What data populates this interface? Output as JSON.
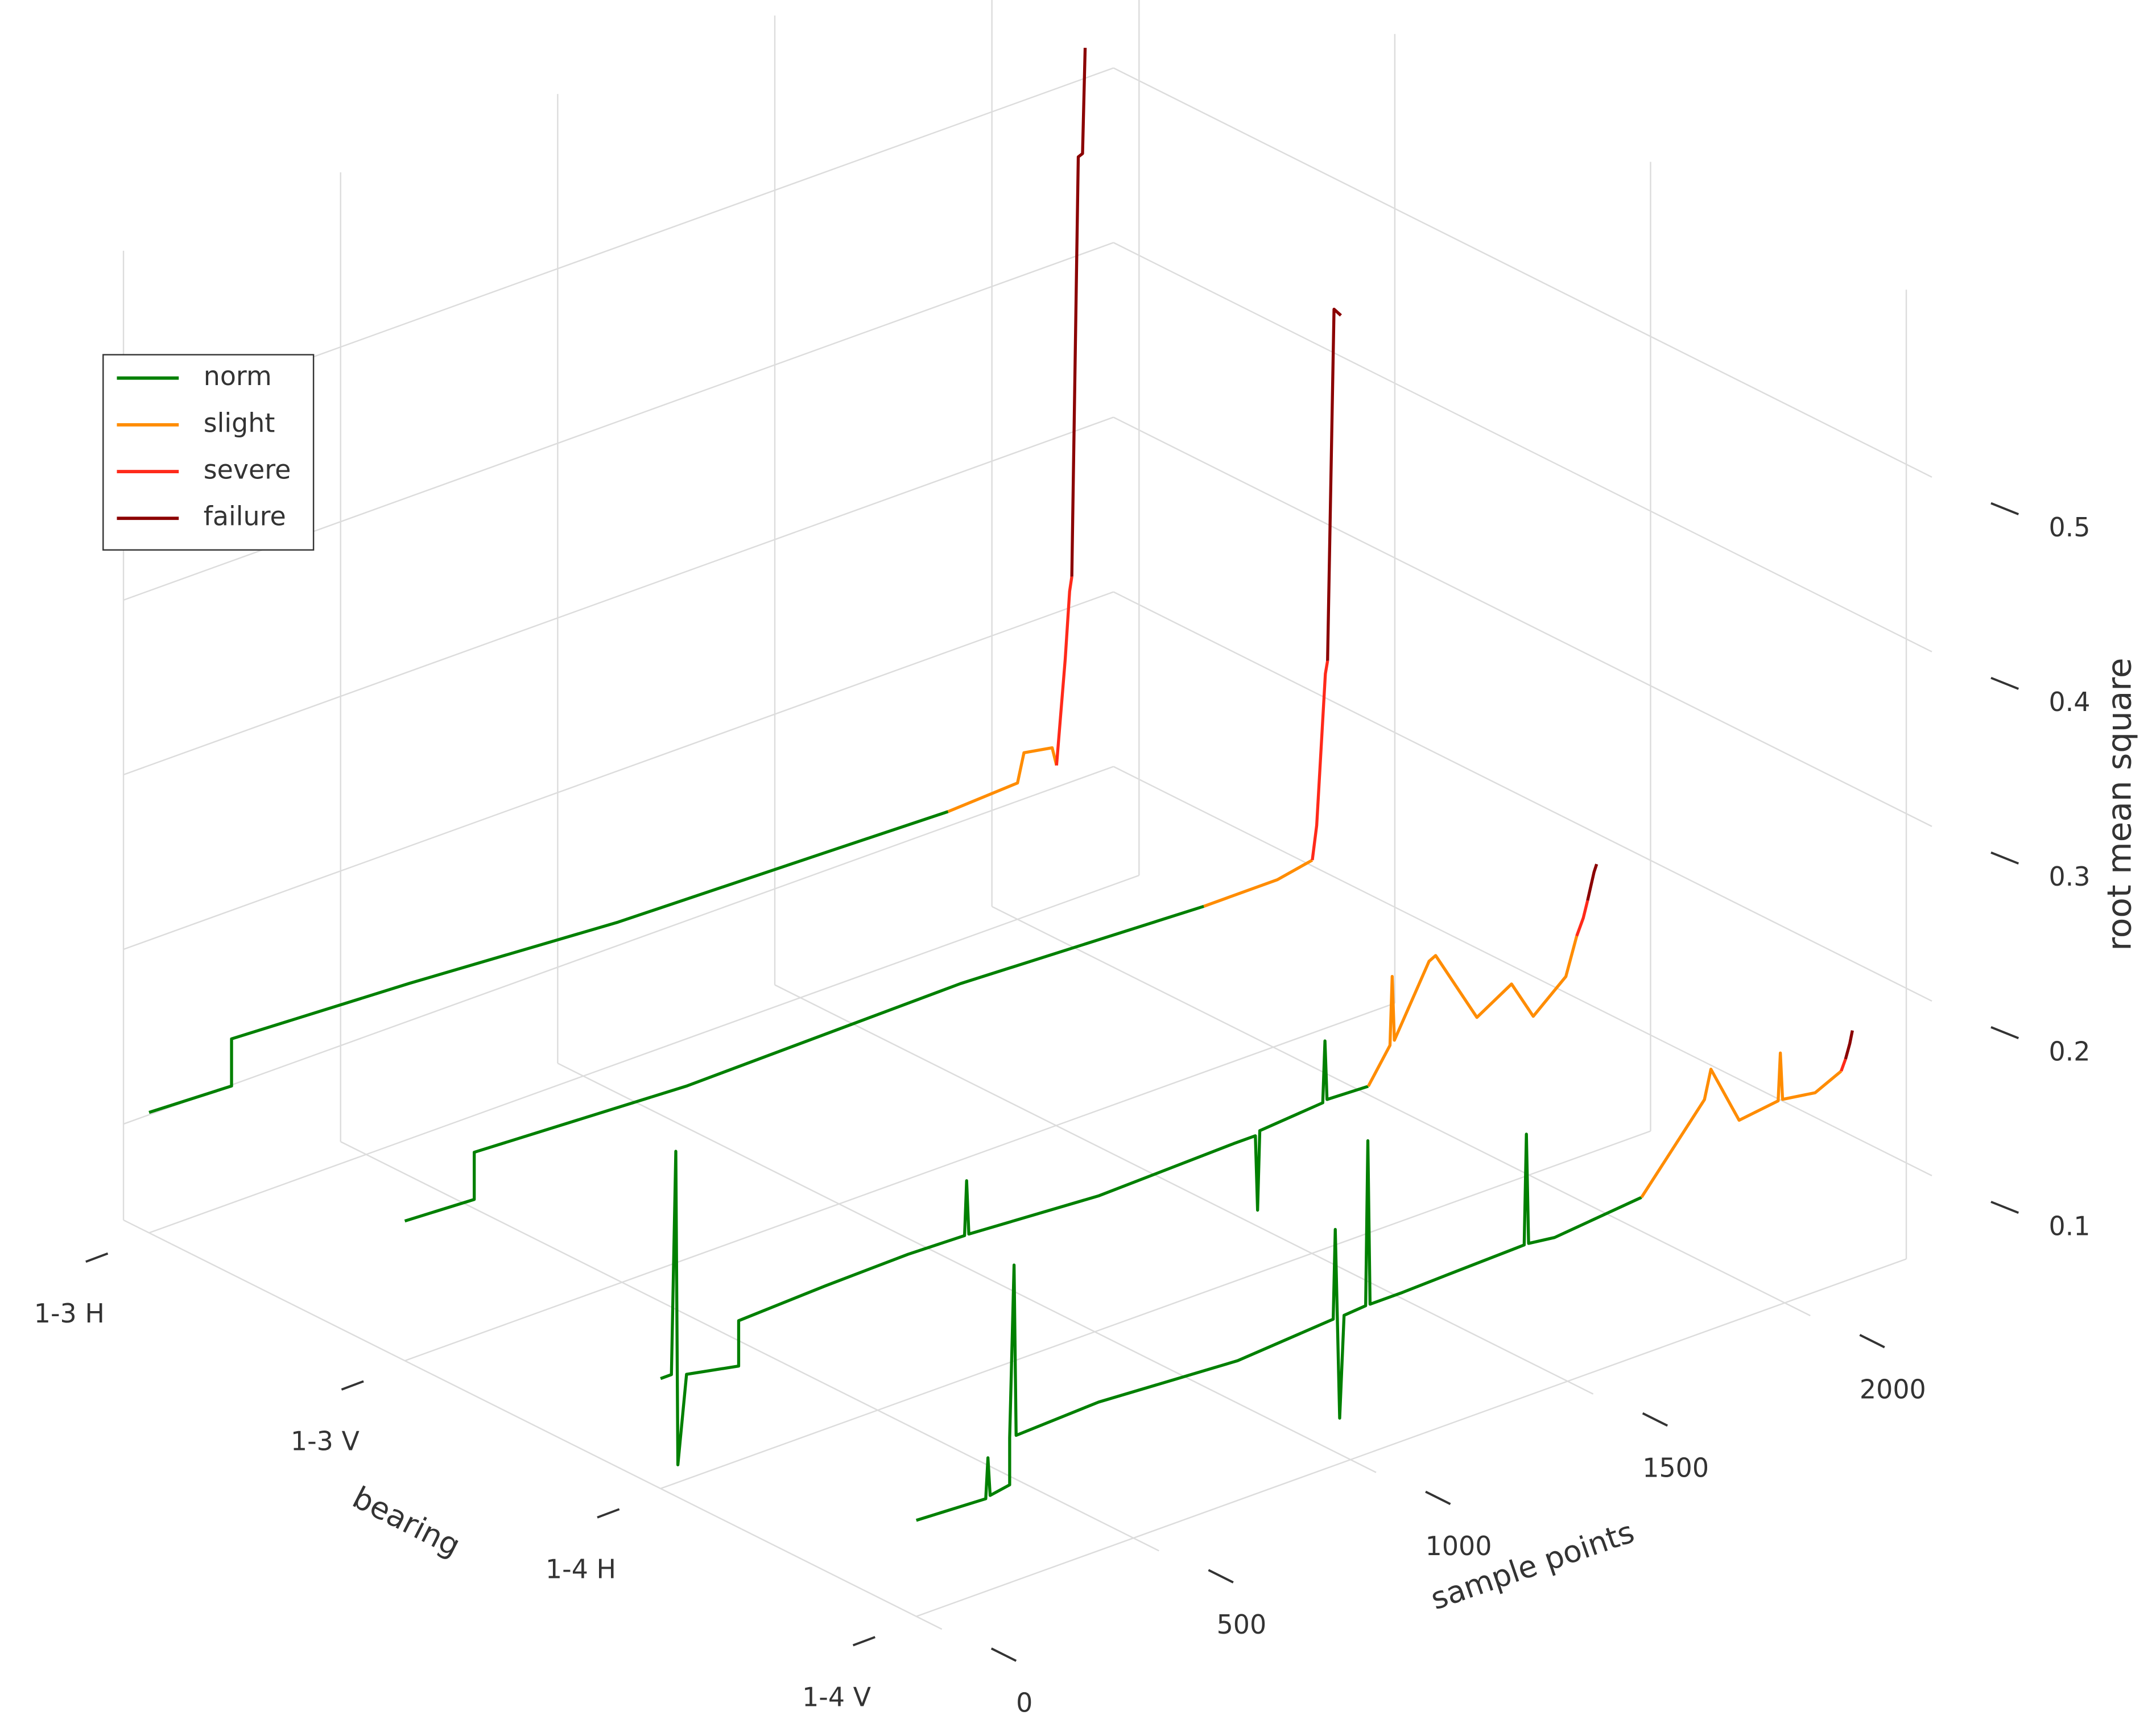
{
  "chart_data": {
    "type": "line3d",
    "xlabel": "sample points",
    "ylabel": "bearing",
    "zlabel": "root mean square",
    "categories": [
      "1-3 H",
      "1-3 V",
      "1-4 H",
      "1-4 V"
    ],
    "xlim": [
      0,
      2280
    ],
    "xticks": [
      0,
      500,
      1000,
      1500,
      2000
    ],
    "zlim": [
      0.045,
      0.6
    ],
    "zticks": [
      0.1,
      0.2,
      0.3,
      0.4,
      0.5
    ],
    "grid": true,
    "legend": "upper left",
    "series": [
      {
        "name": "norm",
        "color": "#008000",
        "x": [
          [
            0,
            190,
            190,
            600,
            1080,
            1550,
            1840
          ],
          [
            0,
            160,
            160,
            650,
            1280,
            1840
          ],
          [
            0,
            25,
            35,
            40,
            60,
            180,
            180,
            380,
            570,
            700,
            705,
            710,
            1010,
            1320,
            1370,
            1375,
            1380,
            1525,
            1530,
            1535,
            1630
          ],
          [
            0,
            160,
            165,
            170,
            215,
            215,
            225,
            230,
            420,
            740,
            960,
            965,
            975,
            985,
            1035,
            1040,
            1045,
            1120,
            1245,
            1400,
            1405,
            1410,
            1470,
            1670
          ]
        ],
        "values": [
          [
            0.114,
            0.112,
            0.139,
            0.134,
            0.126,
            0.123,
            0.121
          ],
          [
            0.125,
            0.123,
            0.15,
            0.144,
            0.146,
            0.14
          ],
          [
            0.108,
            0.108,
            0.235,
            0.055,
            0.105,
            0.099,
            0.125,
            0.127,
            0.128,
            0.127,
            0.158,
            0.127,
            0.122,
            0.124,
            0.124,
            0.081,
            0.126,
            0.129,
            0.164,
            0.13,
            0.129
          ],
          [
            0.1,
            0.098,
            0.121,
            0.099,
            0.101,
            0.128,
            0.226,
            0.128,
            0.13,
            0.125,
            0.129,
            0.18,
            0.071,
            0.129,
            0.13,
            0.224,
            0.13,
            0.13,
            0.131,
            0.132,
            0.195,
            0.132,
            0.13,
            0.135
          ]
        ]
      },
      {
        "name": "slight",
        "color": "#ff8c00",
        "x": [
          [
            1840,
            2000,
            2015,
            2080,
            2090
          ],
          [
            1840,
            2010,
            2090
          ],
          [
            1630,
            1680,
            1685,
            1690,
            1770,
            1785,
            1880,
            1960,
            2010,
            2085,
            2110
          ],
          [
            1670,
            1815,
            1830,
            1895,
            1985,
            1990,
            1995,
            2070,
            2130
          ]
        ],
        "values": [
          [
            0.121,
            0.123,
            0.139,
            0.136,
            0.125
          ],
          [
            0.14,
            0.14,
            0.144
          ],
          [
            0.129,
            0.148,
            0.187,
            0.15,
            0.188,
            0.19,
            0.146,
            0.158,
            0.135,
            0.151,
            0.172
          ],
          [
            0.135,
            0.178,
            0.194,
            0.159,
            0.162,
            0.189,
            0.162,
            0.159,
            0.166
          ]
        ]
      },
      {
        "name": "severe",
        "color": "#ff2a1a",
        "x": [
          [
            2090,
            2110,
            2120,
            2125
          ],
          [
            2090,
            2100,
            2120,
            2125
          ],
          [
            2110,
            2125,
            2135
          ],
          [
            2130,
            2140
          ]
        ],
        "values": [
          [
            0.125,
            0.184,
            0.222,
            0.23
          ],
          [
            0.144,
            0.163,
            0.248,
            0.255
          ],
          [
            0.172,
            0.181,
            0.19
          ],
          [
            0.166,
            0.172
          ]
        ]
      },
      {
        "name": "failure",
        "color": "#8b0000",
        "x": [
          [
            2125,
            2140,
            2150,
            2156
          ],
          [
            2125,
            2140,
            2156
          ],
          [
            2135,
            2150,
            2156
          ],
          [
            2140,
            2150,
            2156
          ]
        ],
        "values": [
          [
            0.23,
            0.469,
            0.47,
            0.53
          ],
          [
            0.255,
            0.455,
            0.45
          ],
          [
            0.19,
            0.205,
            0.209
          ],
          [
            0.172,
            0.18,
            0.187
          ]
        ]
      }
    ]
  }
}
